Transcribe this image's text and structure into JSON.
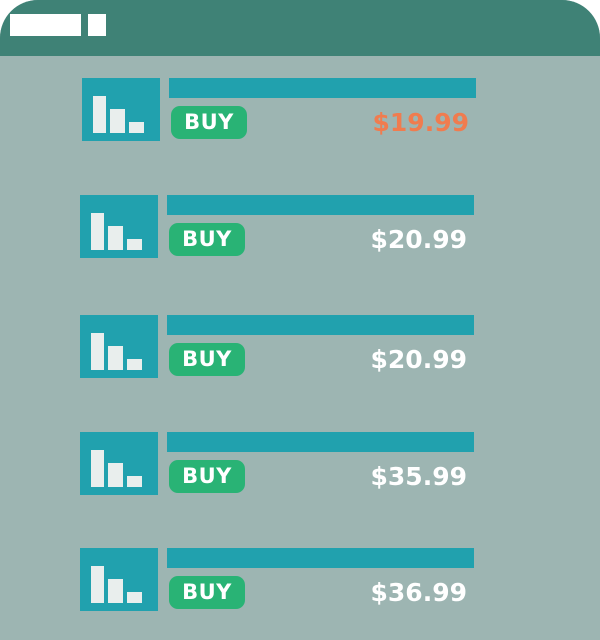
{
  "window": {
    "accent_color": "#3f8276",
    "background_color": "#9db5b2"
  },
  "products": [
    {
      "button_label": "BUY",
      "price": "$19.99",
      "price_color": "#f07c4f"
    },
    {
      "button_label": "BUY",
      "price": "$20.99",
      "price_color": "#ffffff"
    },
    {
      "button_label": "BUY",
      "price": "$20.99",
      "price_color": "#ffffff"
    },
    {
      "button_label": "BUY",
      "price": "$35.99",
      "price_color": "#ffffff"
    },
    {
      "button_label": "BUY",
      "price": "$36.99",
      "price_color": "#ffffff"
    }
  ],
  "icons": {
    "thumbnail": "bar-chart-icon"
  }
}
